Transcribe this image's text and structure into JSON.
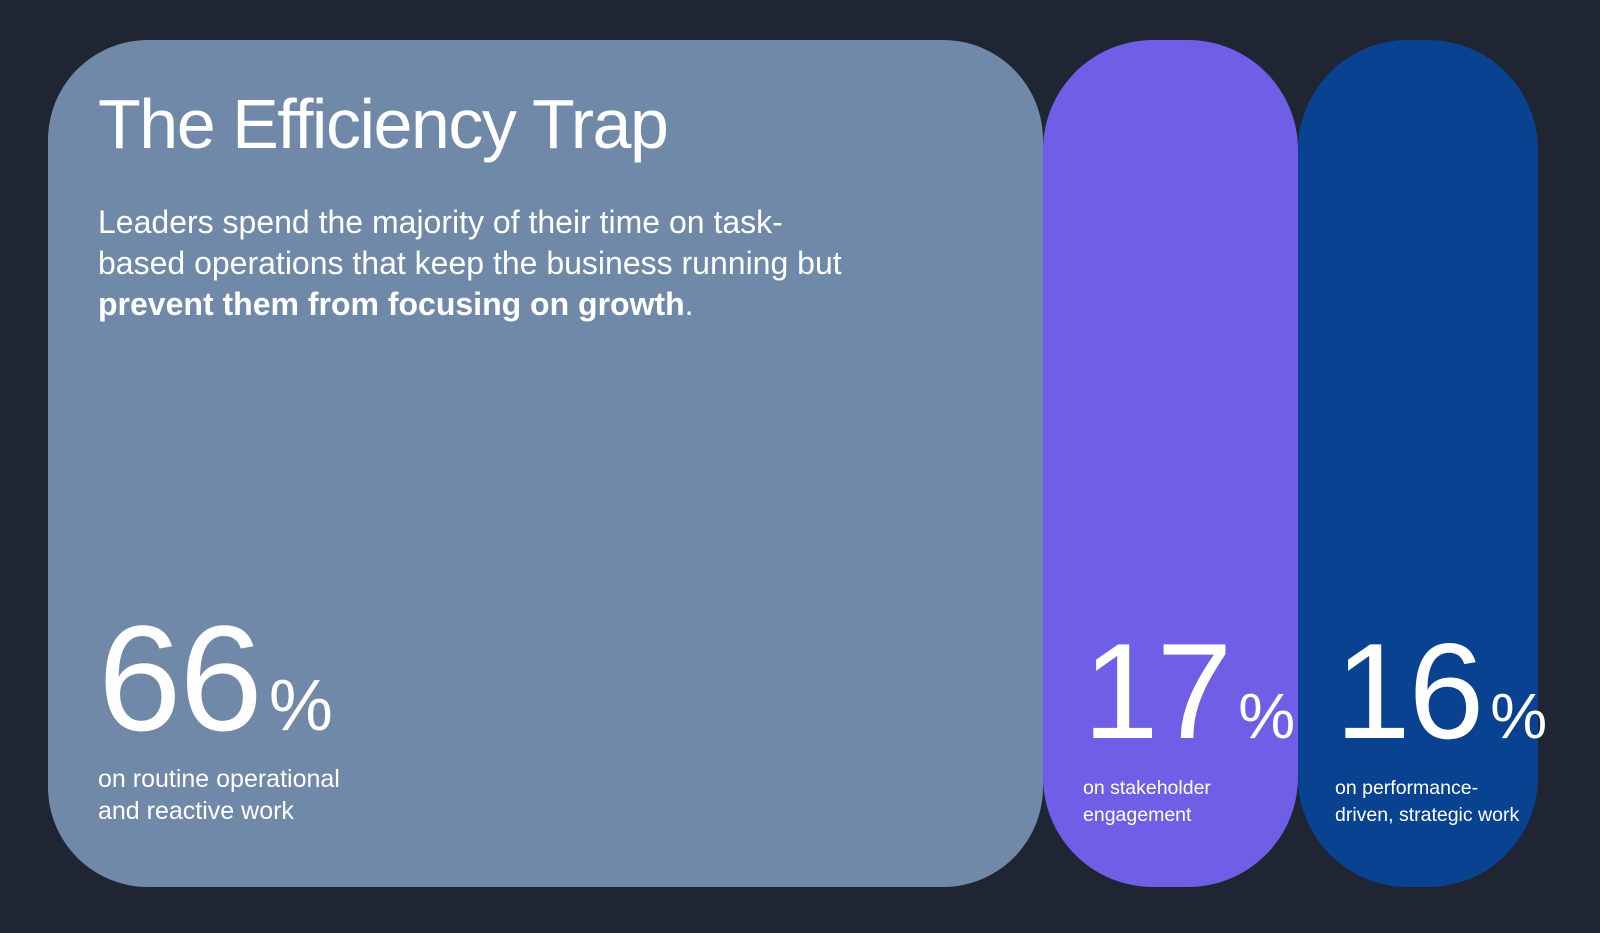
{
  "page": {
    "background": "#1F2532"
  },
  "hero": {
    "title": "The Efficiency Trap",
    "intro": {
      "line1": "Leaders spend the majority of their time on task-",
      "line2": "based operations that keep the business running but",
      "bold": "prevent them from focusing on growth",
      "period": "."
    }
  },
  "stats": [
    {
      "value": "66",
      "unit": "%",
      "label_line1": "on routine operational",
      "label_line2": "and reactive work",
      "color": "#7189A8"
    },
    {
      "value": "17",
      "unit": "%",
      "label_line1": "on stakeholder",
      "label_line2": "engagement",
      "color": "#6E5FE6"
    },
    {
      "value": "16",
      "unit": "%",
      "label_line1": "on performance-",
      "label_line2": "driven, strategic work",
      "color": "#0A4292"
    }
  ],
  "chart_data": {
    "type": "bar",
    "title": "The Efficiency Trap",
    "subtitle": "Leaders spend the majority of their time on task-based operations that keep the business running but prevent them from focusing on growth.",
    "categories": [
      "on routine operational and reactive work",
      "on stakeholder engagement",
      "on performance-driven, strategic work"
    ],
    "values": [
      66,
      17,
      16
    ],
    "unit": "%",
    "colors": [
      "#7189A8",
      "#6E5FE6",
      "#0A4292"
    ],
    "background": "#1F2532",
    "layout": "horizontal proportional rounded bars, width proportional to value, value labels inside bars at bottom-left"
  }
}
